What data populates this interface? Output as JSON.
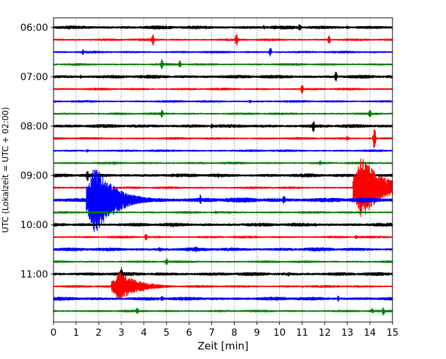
{
  "chart_data": {
    "type": "line",
    "xlabel": "Zeit  [min]",
    "ylabel": "UTC (Lokalzeit = UTC + 02:00)",
    "xlim": [
      0,
      15
    ],
    "x_ticks": [
      "0",
      "1",
      "2",
      "3",
      "4",
      "5",
      "6",
      "7",
      "8",
      "9",
      "10",
      "11",
      "12",
      "13",
      "14",
      "15"
    ],
    "y_ticks": [
      "06:00",
      "07:00",
      "08:00",
      "09:00",
      "10:00",
      "11:00"
    ],
    "vertical_gridlines": true,
    "colors": [
      "#000000",
      "#ff0000",
      "#0000ff",
      "#008000"
    ],
    "traces": [
      {
        "start": "06:00",
        "color": "#000000",
        "amp": 3,
        "events": [
          {
            "t": 9.3,
            "a": 4
          },
          {
            "t": 10.9,
            "a": 6
          },
          {
            "t": 13.0,
            "a": 3
          }
        ]
      },
      {
        "start": "06:15",
        "color": "#ff0000",
        "amp": 2,
        "events": [
          {
            "t": 4.4,
            "a": 9
          },
          {
            "t": 8.1,
            "a": 10
          },
          {
            "t": 12.2,
            "a": 7
          }
        ]
      },
      {
        "start": "06:30",
        "color": "#0000ff",
        "amp": 2,
        "events": [
          {
            "t": 1.3,
            "a": 4
          },
          {
            "t": 9.6,
            "a": 7
          }
        ]
      },
      {
        "start": "06:45",
        "color": "#008000",
        "amp": 2,
        "events": [
          {
            "t": 4.8,
            "a": 8
          },
          {
            "t": 5.6,
            "a": 7
          }
        ]
      },
      {
        "start": "07:00",
        "color": "#000000",
        "amp": 3,
        "events": [
          {
            "t": 1.2,
            "a": 3
          },
          {
            "t": 12.5,
            "a": 8
          }
        ]
      },
      {
        "start": "07:15",
        "color": "#ff0000",
        "amp": 2,
        "events": [
          {
            "t": 11.0,
            "a": 7
          }
        ]
      },
      {
        "start": "07:30",
        "color": "#0000ff",
        "amp": 2,
        "events": [
          {
            "t": 8.7,
            "a": 3
          }
        ]
      },
      {
        "start": "07:45",
        "color": "#008000",
        "amp": 2,
        "events": [
          {
            "t": 4.8,
            "a": 7
          },
          {
            "t": 14.0,
            "a": 6
          }
        ]
      },
      {
        "start": "08:00",
        "color": "#000000",
        "amp": 3,
        "events": [
          {
            "t": 7.0,
            "a": 4
          },
          {
            "t": 11.5,
            "a": 9
          }
        ]
      },
      {
        "start": "08:15",
        "color": "#ff0000",
        "amp": 2,
        "events": [
          {
            "t": 13.0,
            "a": 4
          },
          {
            "t": 14.2,
            "a": 18
          }
        ]
      },
      {
        "start": "08:30",
        "color": "#0000ff",
        "amp": 2,
        "events": [
          {
            "t": 1.5,
            "a": 3
          }
        ]
      },
      {
        "start": "08:45",
        "color": "#008000",
        "amp": 2,
        "events": [
          {
            "t": 2.7,
            "a": 3
          },
          {
            "t": 11.8,
            "a": 4
          }
        ]
      },
      {
        "start": "09:00",
        "color": "#000000",
        "amp": 3,
        "events": [
          {
            "t": 1.5,
            "a": 10
          },
          {
            "t": 7.3,
            "a": 4
          }
        ]
      },
      {
        "start": "09:15",
        "color": "#ff0000",
        "amp": 2,
        "events": [
          {
            "t": 13.6,
            "a": 50
          }
        ]
      },
      {
        "start": "09:30",
        "color": "#0000ff",
        "amp": 4,
        "events": [
          {
            "t": 1.8,
            "a": 55
          },
          {
            "t": 6.5,
            "a": 8
          },
          {
            "t": 10.2,
            "a": 8
          }
        ]
      },
      {
        "start": "09:45",
        "color": "#008000",
        "amp": 2,
        "events": [
          {
            "t": 7.2,
            "a": 3
          }
        ]
      },
      {
        "start": "10:00",
        "color": "#000000",
        "amp": 3,
        "events": [
          {
            "t": 5.3,
            "a": 4
          },
          {
            "t": 11.6,
            "a": 3
          }
        ]
      },
      {
        "start": "10:15",
        "color": "#ff0000",
        "amp": 2,
        "events": [
          {
            "t": 4.1,
            "a": 6
          },
          {
            "t": 13.4,
            "a": 4
          }
        ]
      },
      {
        "start": "10:30",
        "color": "#0000ff",
        "amp": 3,
        "events": [
          {
            "t": 4.7,
            "a": 4
          },
          {
            "t": 6.3,
            "a": 5
          }
        ]
      },
      {
        "start": "10:45",
        "color": "#008000",
        "amp": 2,
        "events": [
          {
            "t": 5.0,
            "a": 6
          }
        ]
      },
      {
        "start": "11:00",
        "color": "#000000",
        "amp": 3,
        "events": [
          {
            "t": 3.0,
            "a": 12
          },
          {
            "t": 10.4,
            "a": 4
          }
        ]
      },
      {
        "start": "11:15",
        "color": "#ff0000",
        "amp": 2,
        "events": [
          {
            "t": 2.9,
            "a": 22
          },
          {
            "t": 4.0,
            "a": 8
          }
        ]
      },
      {
        "start": "11:30",
        "color": "#0000ff",
        "amp": 3,
        "events": [
          {
            "t": 4.8,
            "a": 5
          },
          {
            "t": 12.6,
            "a": 5
          }
        ]
      },
      {
        "start": "11:45",
        "color": "#008000",
        "amp": 2,
        "events": [
          {
            "t": 3.7,
            "a": 6
          },
          {
            "t": 14.1,
            "a": 5
          },
          {
            "t": 14.6,
            "a": 7
          }
        ]
      }
    ]
  }
}
